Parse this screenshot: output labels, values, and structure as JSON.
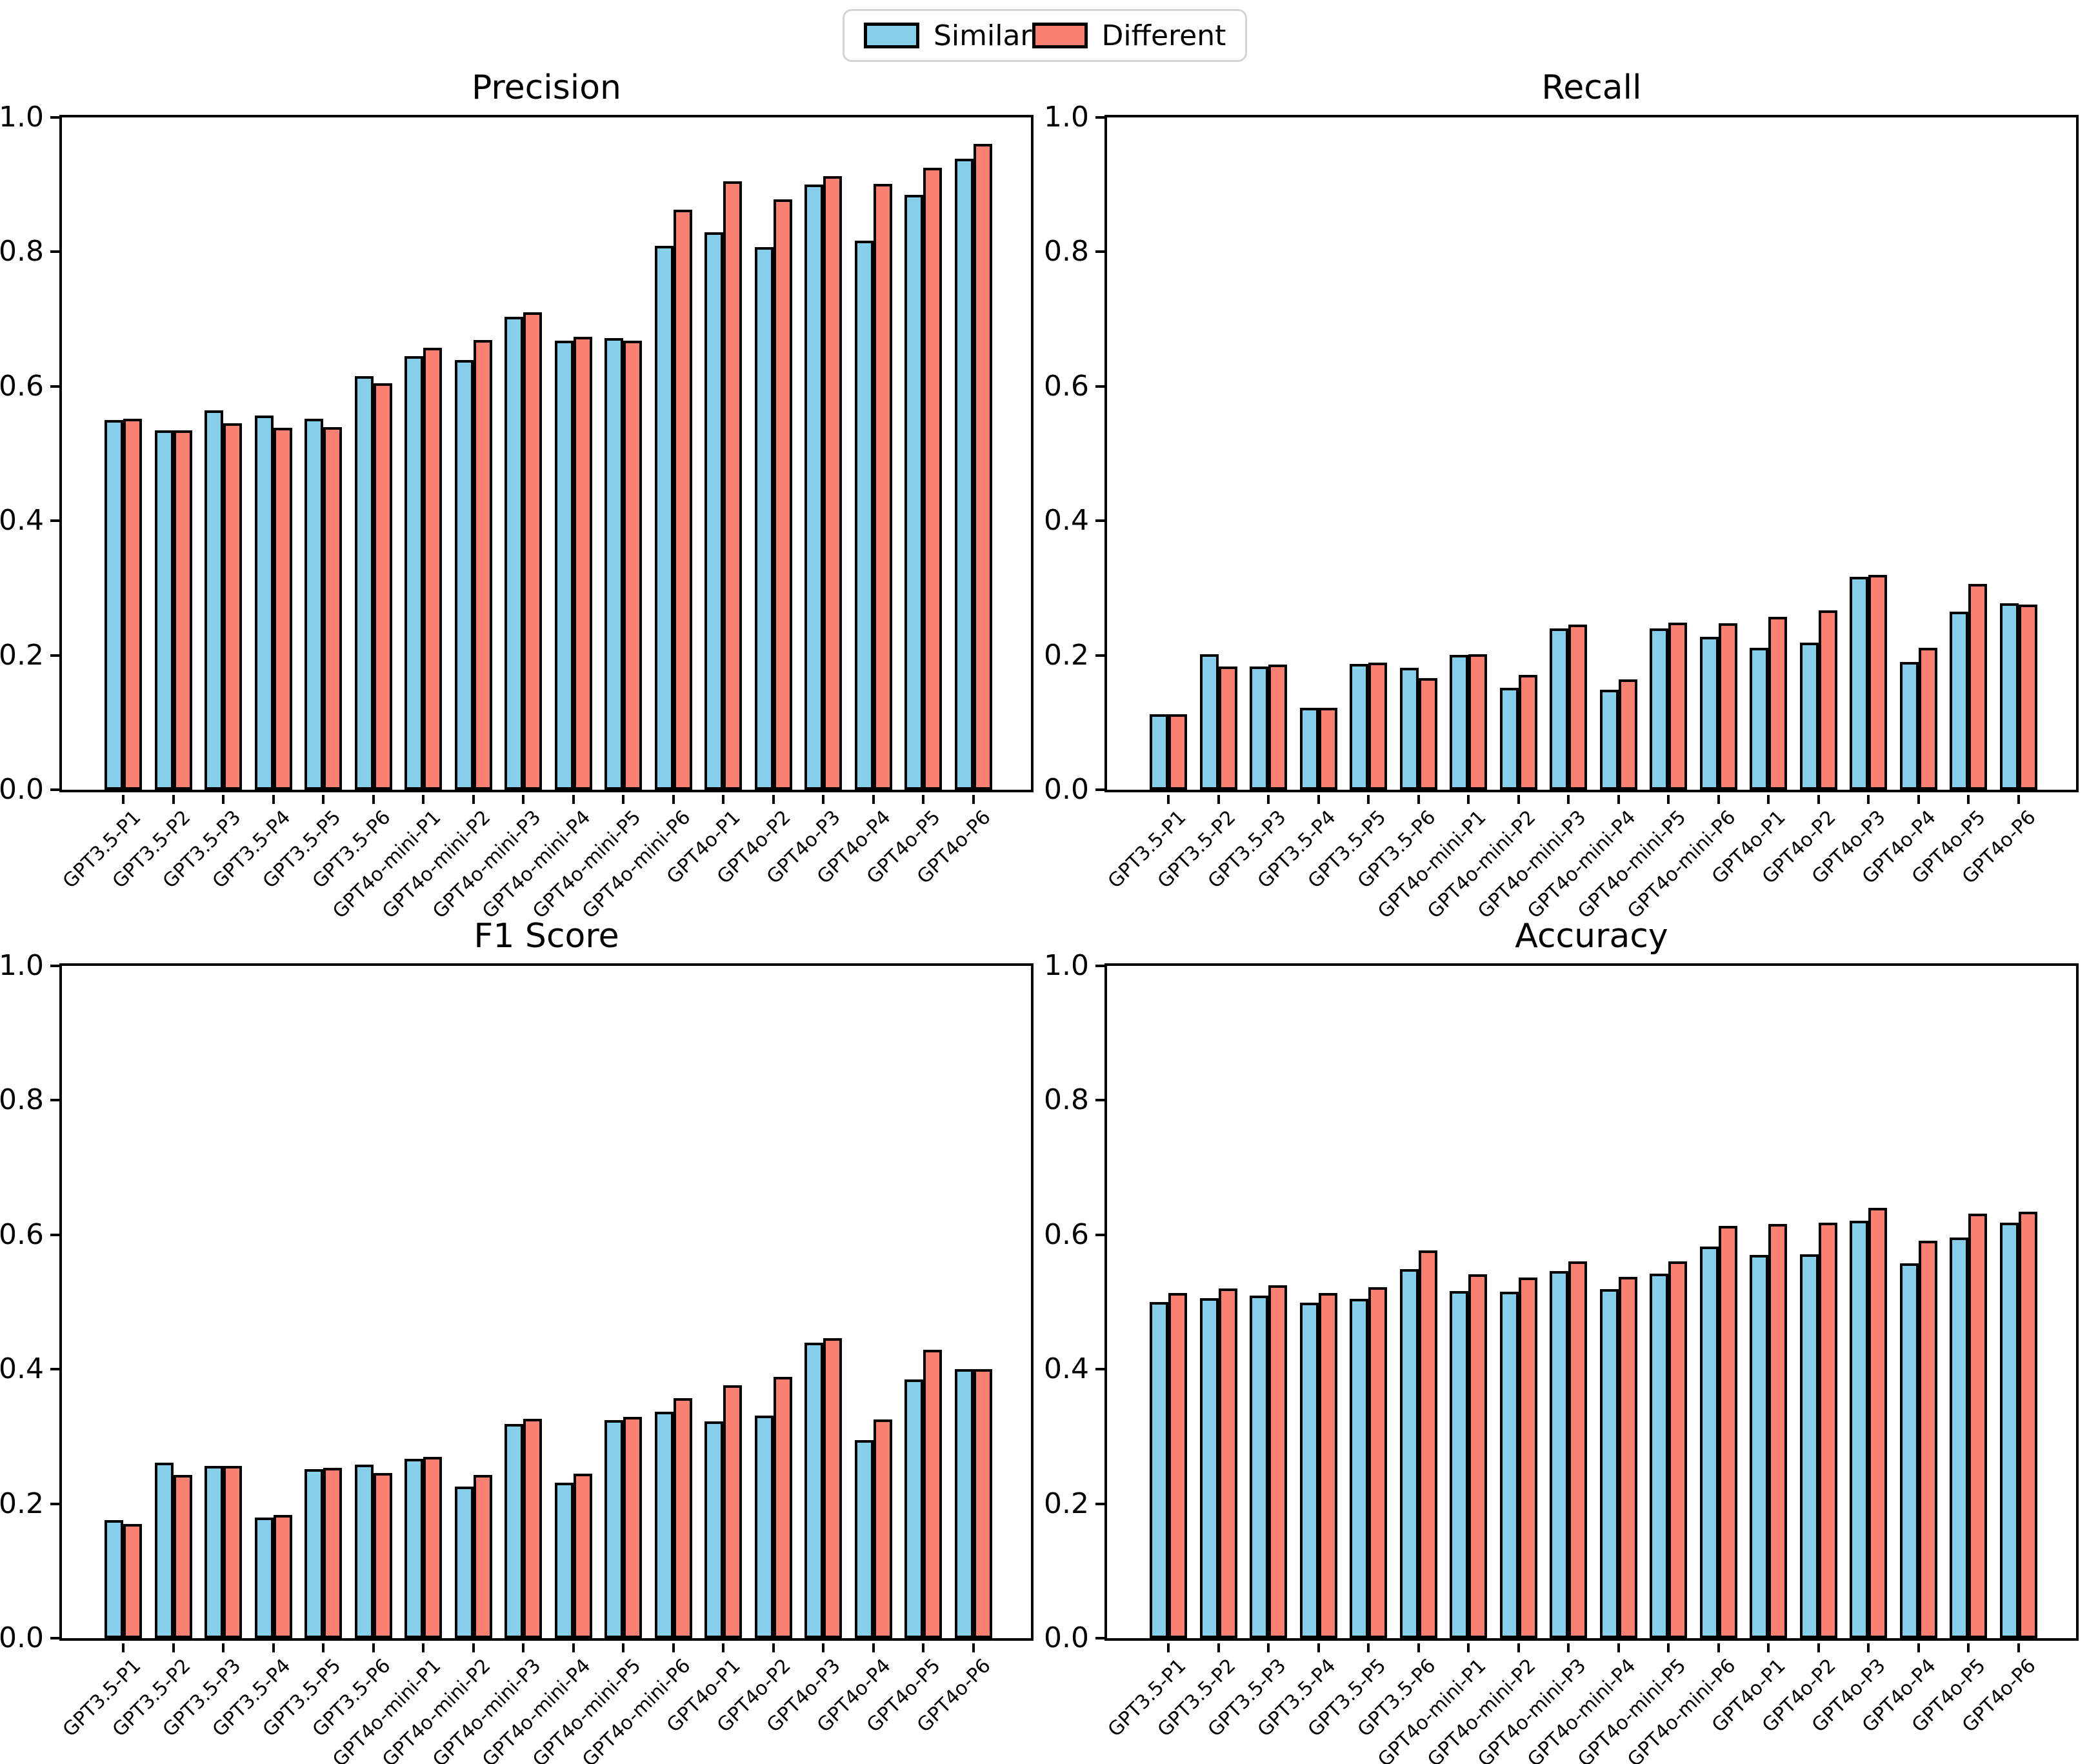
{
  "legend": {
    "items": [
      {
        "label": "Similar",
        "color": "#87CEEB"
      },
      {
        "label": "Different",
        "color": "#FA8072"
      }
    ]
  },
  "axis": {
    "ytick_labels": [
      "0.0",
      "0.2",
      "0.4",
      "0.6",
      "0.8",
      "1.0"
    ],
    "ylim": [
      0.0,
      1.0
    ]
  },
  "chart_data": [
    {
      "type": "bar",
      "title": "Precision",
      "xlabel": "",
      "ylabel": "",
      "ylim": [
        0.0,
        1.0
      ],
      "yticks": [
        0.0,
        0.2,
        0.4,
        0.6,
        0.8,
        1.0
      ],
      "grid": false,
      "legend_position": "top-center-figure",
      "categories": [
        "GPT3.5-P1",
        "GPT3.5-P2",
        "GPT3.5-P3",
        "GPT3.5-P4",
        "GPT3.5-P5",
        "GPT3.5-P6",
        "GPT4o-mini-P1",
        "GPT4o-mini-P2",
        "GPT4o-mini-P3",
        "GPT4o-mini-P4",
        "GPT4o-mini-P5",
        "GPT4o-mini-P6",
        "GPT4o-P1",
        "GPT4o-P2",
        "GPT4o-P3",
        "GPT4o-P4",
        "GPT4o-P5",
        "GPT4o-P6"
      ],
      "series": [
        {
          "name": "Similar",
          "color": "#87CEEB",
          "values": [
            0.55,
            0.535,
            0.564,
            0.557,
            0.552,
            0.615,
            0.645,
            0.639,
            0.703,
            0.668,
            0.672,
            0.809,
            0.829,
            0.807,
            0.9,
            0.817,
            0.885,
            0.939
          ]
        },
        {
          "name": "Different",
          "color": "#FA8072",
          "values": [
            0.552,
            0.535,
            0.545,
            0.538,
            0.539,
            0.605,
            0.657,
            0.669,
            0.71,
            0.674,
            0.668,
            0.863,
            0.905,
            0.878,
            0.913,
            0.901,
            0.925,
            0.961
          ]
        }
      ]
    },
    {
      "type": "bar",
      "title": "Recall",
      "xlabel": "",
      "ylabel": "",
      "ylim": [
        0.0,
        1.0
      ],
      "yticks": [
        0.0,
        0.2,
        0.4,
        0.6,
        0.8,
        1.0
      ],
      "grid": false,
      "legend_position": "top-center-figure",
      "categories": [
        "GPT3.5-P1",
        "GPT3.5-P2",
        "GPT3.5-P3",
        "GPT3.5-P4",
        "GPT3.5-P5",
        "GPT3.5-P6",
        "GPT4o-mini-P1",
        "GPT4o-mini-P2",
        "GPT4o-mini-P3",
        "GPT4o-mini-P4",
        "GPT4o-mini-P5",
        "GPT4o-mini-P6",
        "GPT4o-P1",
        "GPT4o-P2",
        "GPT4o-P3",
        "GPT4o-P4",
        "GPT4o-P5",
        "GPT4o-P6"
      ],
      "series": [
        {
          "name": "Similar",
          "color": "#87CEEB",
          "values": [
            0.112,
            0.202,
            0.183,
            0.122,
            0.187,
            0.181,
            0.201,
            0.152,
            0.24,
            0.149,
            0.24,
            0.227,
            0.211,
            0.219,
            0.317,
            0.19,
            0.265,
            0.277
          ]
        },
        {
          "name": "Different",
          "color": "#FA8072",
          "values": [
            0.112,
            0.183,
            0.186,
            0.122,
            0.189,
            0.166,
            0.202,
            0.171,
            0.246,
            0.164,
            0.249,
            0.248,
            0.257,
            0.267,
            0.32,
            0.211,
            0.306,
            0.275
          ]
        }
      ]
    },
    {
      "type": "bar",
      "title": "F1 Score",
      "xlabel": "",
      "ylabel": "",
      "ylim": [
        0.0,
        1.0
      ],
      "yticks": [
        0.0,
        0.2,
        0.4,
        0.6,
        0.8,
        1.0
      ],
      "grid": false,
      "legend_position": "top-center-figure",
      "categories": [
        "GPT3.5-P1",
        "GPT3.5-P2",
        "GPT3.5-P3",
        "GPT3.5-P4",
        "GPT3.5-P5",
        "GPT3.5-P6",
        "GPT4o-mini-P1",
        "GPT4o-mini-P2",
        "GPT4o-mini-P3",
        "GPT4o-mini-P4",
        "GPT4o-mini-P5",
        "GPT4o-mini-P6",
        "GPT4o-P1",
        "GPT4o-P2",
        "GPT4o-P3",
        "GPT4o-P4",
        "GPT4o-P5",
        "GPT4o-P6"
      ],
      "series": [
        {
          "name": "Similar",
          "color": "#87CEEB",
          "values": [
            0.176,
            0.261,
            0.256,
            0.179,
            0.251,
            0.258,
            0.267,
            0.226,
            0.319,
            0.231,
            0.324,
            0.337,
            0.322,
            0.331,
            0.44,
            0.295,
            0.385,
            0.4
          ]
        },
        {
          "name": "Different",
          "color": "#FA8072",
          "values": [
            0.17,
            0.243,
            0.256,
            0.183,
            0.253,
            0.246,
            0.27,
            0.243,
            0.326,
            0.245,
            0.329,
            0.357,
            0.376,
            0.389,
            0.446,
            0.325,
            0.429,
            0.4
          ]
        }
      ]
    },
    {
      "type": "bar",
      "title": "Accuracy",
      "xlabel": "",
      "ylabel": "",
      "ylim": [
        0.0,
        1.0
      ],
      "yticks": [
        0.0,
        0.2,
        0.4,
        0.6,
        0.8,
        1.0
      ],
      "grid": false,
      "legend_position": "top-center-figure",
      "categories": [
        "GPT3.5-P1",
        "GPT3.5-P2",
        "GPT3.5-P3",
        "GPT3.5-P4",
        "GPT3.5-P5",
        "GPT3.5-P6",
        "GPT4o-mini-P1",
        "GPT4o-mini-P2",
        "GPT4o-mini-P3",
        "GPT4o-mini-P4",
        "GPT4o-mini-P5",
        "GPT4o-mini-P6",
        "GPT4o-P1",
        "GPT4o-P2",
        "GPT4o-P3",
        "GPT4o-P4",
        "GPT4o-P5",
        "GPT4o-P6"
      ],
      "series": [
        {
          "name": "Similar",
          "color": "#87CEEB",
          "values": [
            0.5,
            0.506,
            0.51,
            0.499,
            0.505,
            0.549,
            0.516,
            0.515,
            0.546,
            0.519,
            0.542,
            0.583,
            0.57,
            0.571,
            0.621,
            0.558,
            0.596,
            0.618
          ]
        },
        {
          "name": "Different",
          "color": "#FA8072",
          "values": [
            0.513,
            0.52,
            0.525,
            0.513,
            0.522,
            0.577,
            0.541,
            0.536,
            0.56,
            0.537,
            0.56,
            0.613,
            0.616,
            0.618,
            0.64,
            0.591,
            0.631,
            0.634
          ]
        }
      ]
    }
  ]
}
